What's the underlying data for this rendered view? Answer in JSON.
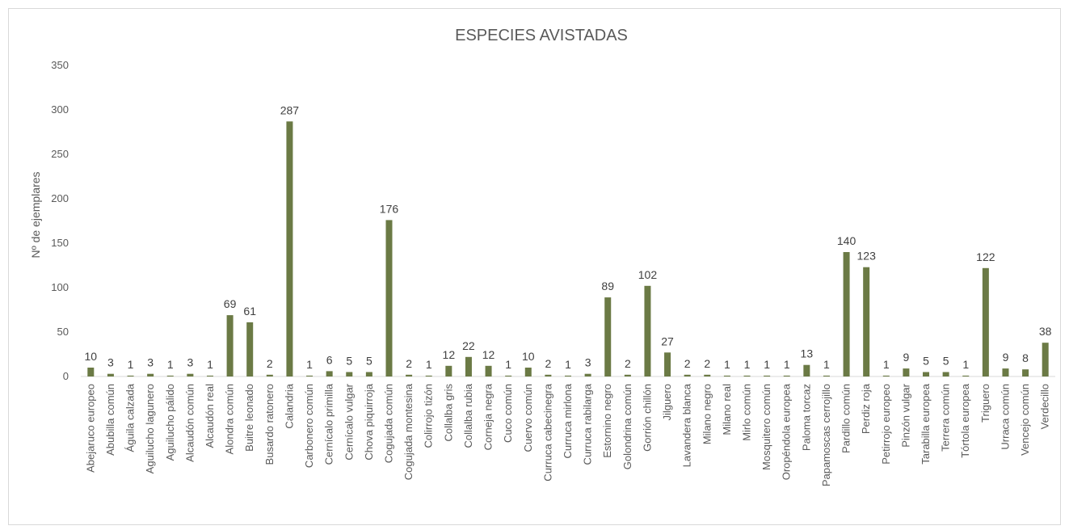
{
  "chart_data": {
    "type": "bar",
    "title": "ESPECIES AVISTADAS",
    "xlabel": "",
    "ylabel": "Nº de ejemplares",
    "ylim": [
      0,
      350
    ],
    "yticks": [
      0,
      50,
      100,
      150,
      200,
      250,
      300,
      350
    ],
    "grid": false,
    "legend": "none",
    "bar_color": "#6b7a45",
    "categories": [
      "Abejaruco europeo",
      "Abubilla común",
      "Águila calzada",
      "Aguilucho lagunero",
      "Aguilucho pálido",
      "Alcaudón común",
      "Alcaudón real",
      "Alondra común",
      "Buitre leonado",
      "Busardo ratonero",
      "Calandria",
      "Carbonero común",
      "Cernícalo primilla",
      "Cernícalo vulgar",
      "Chova piquirroja",
      "Cogujada común",
      "Cogujada montesina",
      "Colirrojo tizón",
      "Collalba gris",
      "Collalba rubia",
      "Corneja negra",
      "Cuco común",
      "Cuervo común",
      "Curruca cabecinegra",
      "Curruca mirlona",
      "Curruca rabilarga",
      "Estornino negro",
      "Golondrina común",
      "Gorrión chillón",
      "Jilguero",
      "Lavandera blanca",
      "Milano negro",
      "Milano real",
      "Mirlo común",
      "Mosquitero común",
      "Oropéndola europea",
      "Paloma torcaz",
      "Papamoscas cerrojillo",
      "Pardillo común",
      "Perdiz roja",
      "Petirrojo europeo",
      "Pinzón vulgar",
      "Tarabilla europea",
      "Terrera común",
      "Tórtola europea",
      "Triguero",
      "Urraca común",
      "Vencejo común",
      "Verdecillo"
    ],
    "values": [
      10,
      3,
      1,
      3,
      1,
      3,
      1,
      69,
      61,
      2,
      287,
      1,
      6,
      5,
      5,
      176,
      2,
      1,
      12,
      22,
      12,
      1,
      10,
      2,
      1,
      3,
      89,
      2,
      102,
      27,
      2,
      2,
      1,
      1,
      1,
      1,
      13,
      1,
      140,
      123,
      1,
      9,
      5,
      5,
      1,
      122,
      9,
      8,
      38
    ]
  }
}
